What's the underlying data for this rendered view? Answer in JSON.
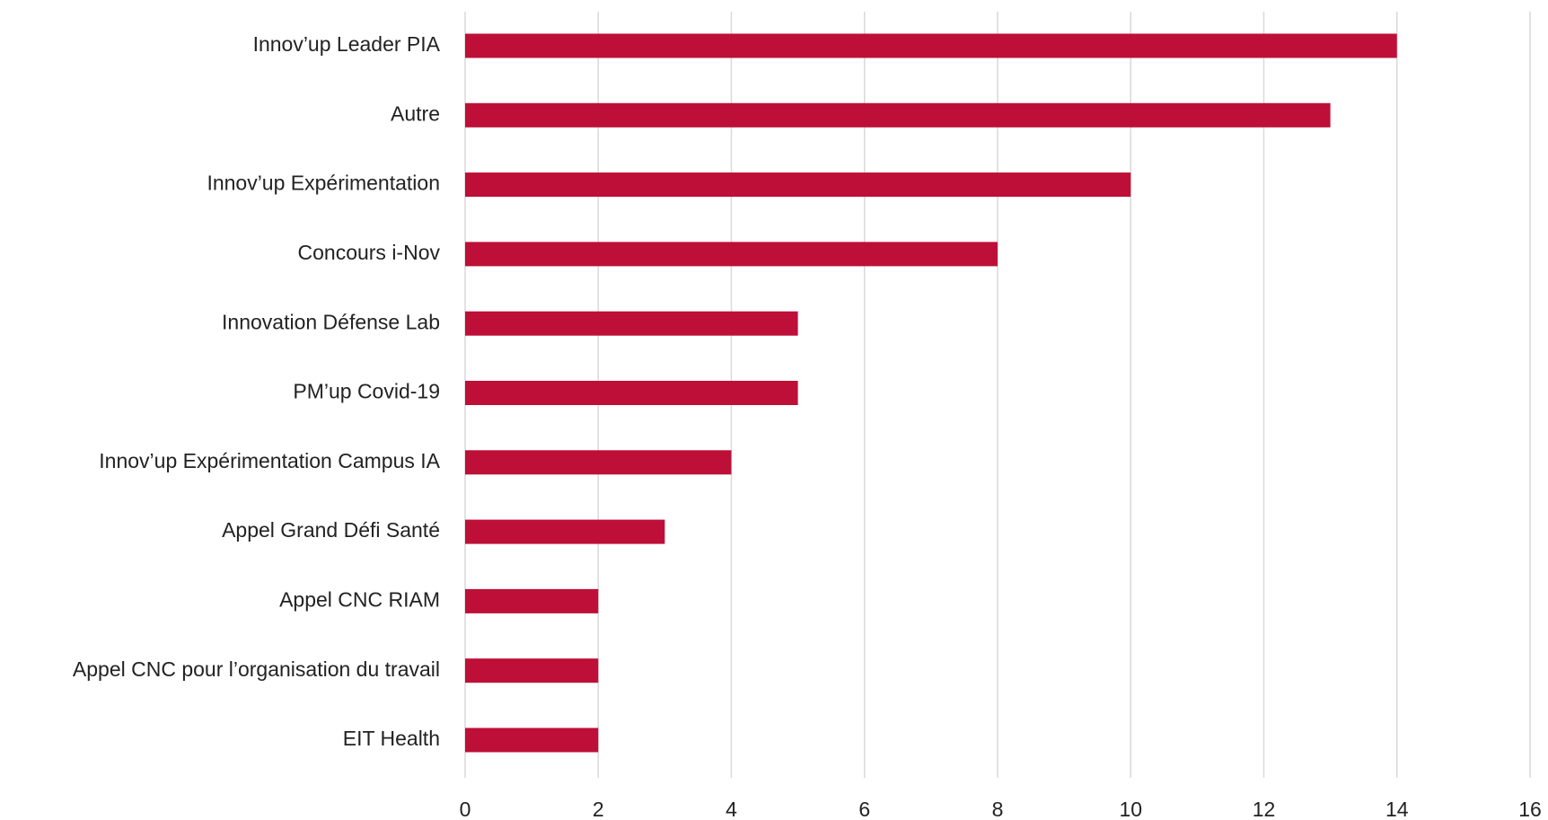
{
  "chart_data": {
    "type": "barh",
    "categories": [
      "Innov’up Leader PIA",
      "Autre",
      "Innov’up Expérimentation",
      "Concours i-Nov",
      "Innovation Défense Lab",
      "PM’up Covid-19",
      "Innov’up Expérimentation Campus IA",
      "Appel Grand Défi Santé",
      "Appel CNC RIAM",
      "Appel CNC pour l’organisation du travail",
      "EIT Health"
    ],
    "values": [
      14,
      13,
      10,
      8,
      5,
      5,
      4,
      3,
      2,
      2,
      2
    ],
    "color": "#bd0f37",
    "xlim": [
      0,
      16
    ],
    "xticks": [
      0,
      2,
      4,
      6,
      8,
      10,
      12,
      14,
      16
    ],
    "grid": true
  }
}
